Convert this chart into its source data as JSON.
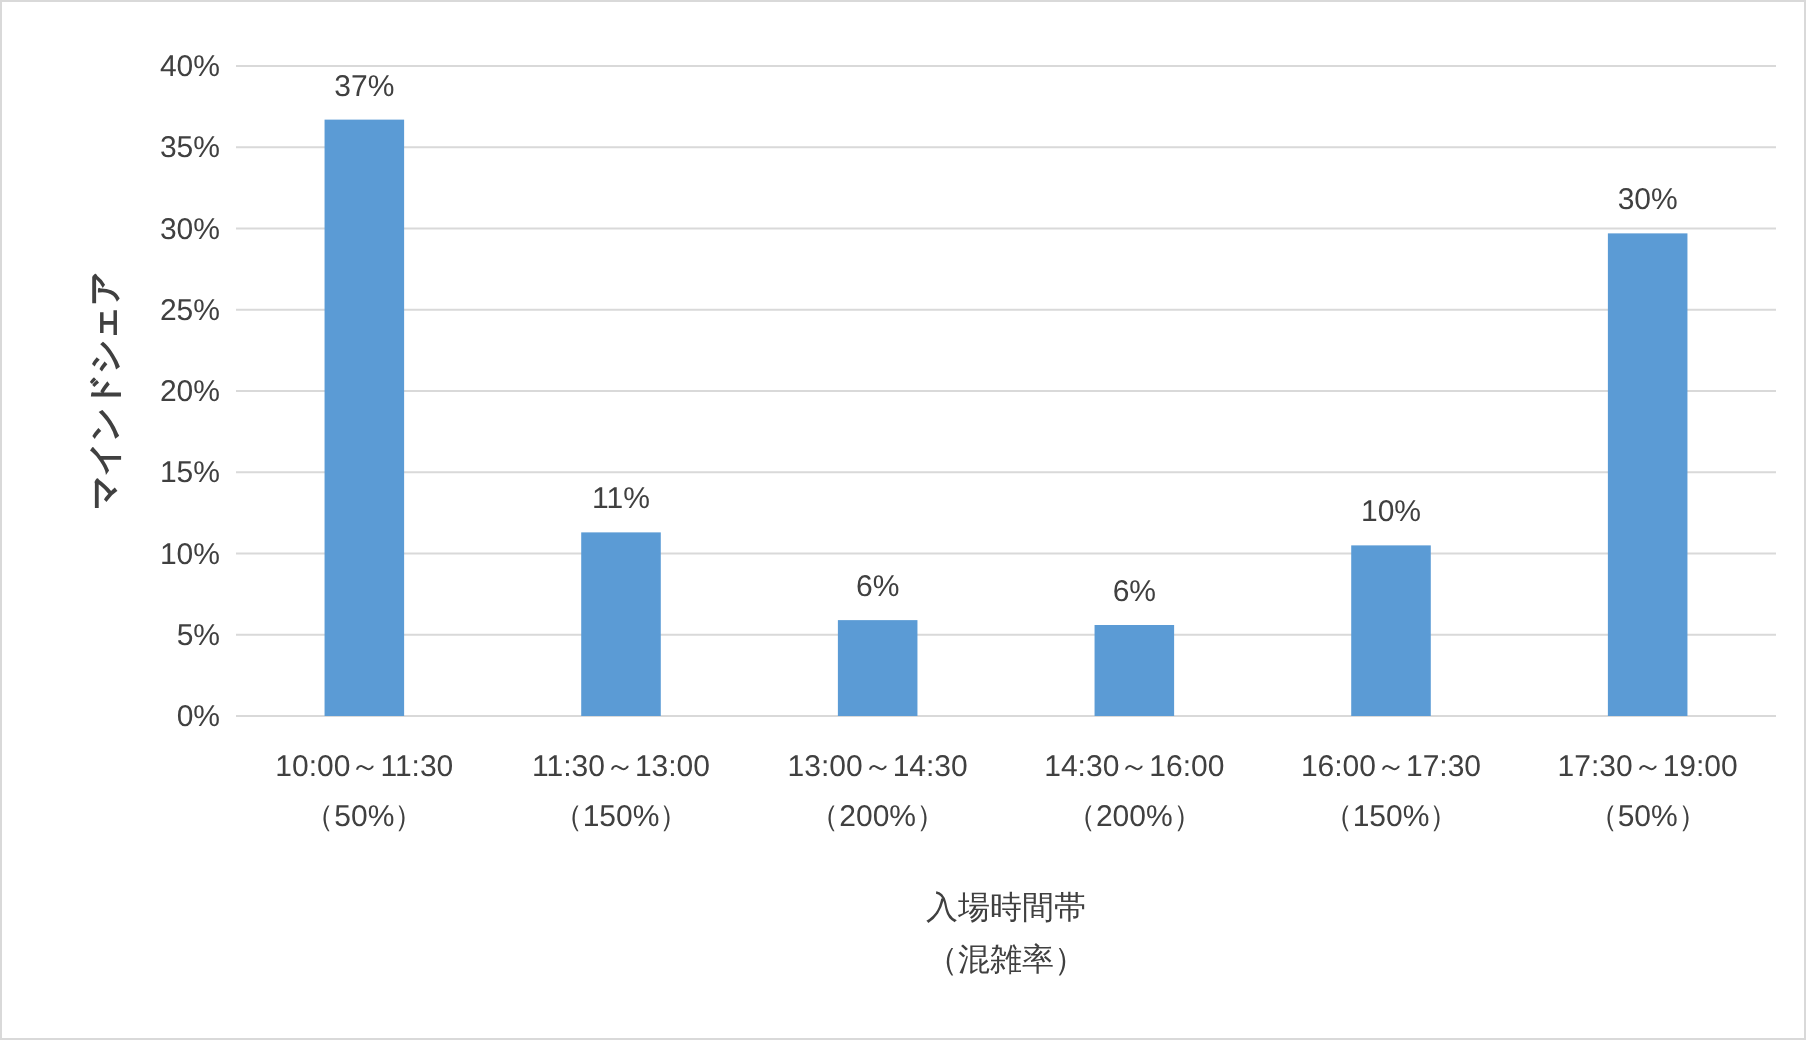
{
  "chart_data": {
    "type": "bar",
    "xlabel": "入場時間帯",
    "annotations": [
      "（混雑率）"
    ],
    "ylabel": "マインドシェア",
    "categories": [
      "10:00～11:30\n（50%）",
      "11:30～13:00\n（150%）",
      "13:00～14:30\n（200%）",
      "14:30～16:00\n（200%）",
      "16:00～17:30\n（150%）",
      "17:30～19:00\n（50%）"
    ],
    "values": [
      36.7,
      11.3,
      5.9,
      5.6,
      10.5,
      29.7
    ],
    "value_labels": [
      "37%",
      "11%",
      "6%",
      "6%",
      "10%",
      "30%"
    ],
    "color": "#5b9bd5",
    "ylim": [
      0,
      40
    ],
    "yticks": [
      {
        "value": 0,
        "label": "0%"
      },
      {
        "value": 5,
        "label": "5%"
      },
      {
        "value": 10,
        "label": "10%"
      },
      {
        "value": 15,
        "label": "15%"
      },
      {
        "value": 20,
        "label": "20%"
      },
      {
        "value": 25,
        "label": "25%"
      },
      {
        "value": 30,
        "label": "30%"
      },
      {
        "value": 35,
        "label": "35%"
      },
      {
        "value": 40,
        "label": "40%"
      }
    ],
    "grid": "y"
  }
}
